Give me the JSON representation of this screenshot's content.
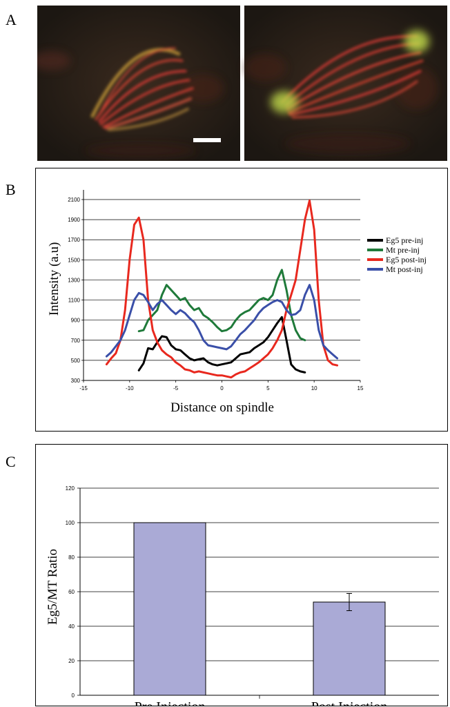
{
  "panels": {
    "a": "A",
    "b": "B",
    "c": "C"
  },
  "colors": {
    "eg5_pre": "#000000",
    "mt_pre": "#1f7a3a",
    "eg5_post": "#e8281e",
    "mt_post": "#3a4fa8",
    "bar_fill": "#aaaad6"
  },
  "chart_data": [
    {
      "type": "line",
      "panel": "B",
      "xlabel": "Distance on spindle",
      "ylabel": "Intensity (a.u)",
      "xlim": [
        -15,
        15
      ],
      "ylim": [
        300,
        2100
      ],
      "xticks": [
        -15,
        -10,
        -5,
        0,
        5,
        10,
        15
      ],
      "yticks": [
        300,
        500,
        700,
        900,
        1100,
        1300,
        1500,
        1700,
        1900,
        2100
      ],
      "grid": "horizontal",
      "legend_position": "right",
      "series": [
        {
          "name": "Eg5 pre-inj",
          "color": "#000000",
          "x": [
            -9,
            -8.5,
            -8,
            -7.5,
            -7,
            -6.5,
            -6,
            -5.5,
            -5,
            -4.5,
            -4,
            -3.5,
            -3,
            -2.5,
            -2,
            -1.5,
            -1,
            -0.5,
            0,
            0.5,
            1,
            1.5,
            2,
            2.5,
            3,
            3.5,
            4,
            4.5,
            5,
            5.5,
            6,
            6.5,
            7,
            7.5,
            8,
            8.5,
            9
          ],
          "y": [
            400,
            470,
            620,
            610,
            680,
            740,
            730,
            650,
            610,
            600,
            560,
            520,
            500,
            510,
            520,
            480,
            460,
            450,
            460,
            470,
            480,
            520,
            560,
            570,
            580,
            620,
            650,
            680,
            730,
            800,
            870,
            930,
            700,
            460,
            410,
            390,
            380
          ]
        },
        {
          "name": "Mt pre-inj",
          "color": "#1f7a3a",
          "x": [
            -9,
            -8.5,
            -8,
            -7.5,
            -7,
            -6.5,
            -6,
            -5.5,
            -5,
            -4.5,
            -4,
            -3.5,
            -3,
            -2.5,
            -2,
            -1.5,
            -1,
            -0.5,
            0,
            0.5,
            1,
            1.5,
            2,
            2.5,
            3,
            3.5,
            4,
            4.5,
            5,
            5.5,
            6,
            6.5,
            7,
            7.5,
            8,
            8.5,
            9
          ],
          "y": [
            790,
            800,
            900,
            950,
            1000,
            1150,
            1250,
            1200,
            1150,
            1100,
            1120,
            1050,
            1000,
            1020,
            950,
            920,
            880,
            830,
            790,
            800,
            830,
            900,
            950,
            980,
            1000,
            1050,
            1100,
            1120,
            1100,
            1150,
            1300,
            1400,
            1200,
            950,
            800,
            720,
            700
          ]
        },
        {
          "name": "Eg5 post-inj",
          "color": "#e8281e",
          "x": [
            -12.5,
            -12,
            -11.5,
            -11,
            -10.5,
            -10,
            -9.5,
            -9,
            -8.5,
            -8,
            -7.5,
            -7,
            -6.5,
            -6,
            -5.5,
            -5,
            -4.5,
            -4,
            -3.5,
            -3,
            -2.5,
            -2,
            -1.5,
            -1,
            -0.5,
            0,
            0.5,
            1,
            1.5,
            2,
            2.5,
            3,
            3.5,
            4,
            4.5,
            5,
            5.5,
            6,
            6.5,
            7,
            7.5,
            8,
            8.5,
            9,
            9.5,
            10,
            10.5,
            11,
            11.5,
            12,
            12.5
          ],
          "y": [
            460,
            520,
            570,
            700,
            1000,
            1500,
            1850,
            1920,
            1700,
            1100,
            800,
            680,
            600,
            560,
            530,
            480,
            450,
            410,
            400,
            380,
            390,
            380,
            370,
            360,
            350,
            350,
            340,
            330,
            360,
            380,
            390,
            420,
            450,
            480,
            520,
            560,
            620,
            700,
            800,
            1000,
            1150,
            1300,
            1600,
            1900,
            2090,
            1800,
            1100,
            650,
            500,
            460,
            450
          ]
        },
        {
          "name": "Mt post-inj",
          "color": "#3a4fa8",
          "x": [
            -12.5,
            -12,
            -11.5,
            -11,
            -10.5,
            -10,
            -9.5,
            -9,
            -8.5,
            -8,
            -7.5,
            -7,
            -6.5,
            -6,
            -5.5,
            -5,
            -4.5,
            -4,
            -3.5,
            -3,
            -2.5,
            -2,
            -1.5,
            -1,
            -0.5,
            0,
            0.5,
            1,
            1.5,
            2,
            2.5,
            3,
            3.5,
            4,
            4.5,
            5,
            5.5,
            6,
            6.5,
            7,
            7.5,
            8,
            8.5,
            9,
            9.5,
            10,
            10.5,
            11,
            11.5,
            12,
            12.5
          ],
          "y": [
            540,
            580,
            640,
            700,
            800,
            950,
            1100,
            1170,
            1150,
            1080,
            1000,
            1060,
            1100,
            1050,
            1000,
            960,
            1000,
            970,
            920,
            880,
            800,
            700,
            650,
            640,
            630,
            620,
            610,
            640,
            700,
            760,
            800,
            850,
            900,
            970,
            1020,
            1050,
            1080,
            1100,
            1080,
            1000,
            950,
            960,
            1000,
            1150,
            1250,
            1100,
            800,
            650,
            600,
            560,
            520
          ]
        }
      ]
    },
    {
      "type": "bar",
      "panel": "C",
      "categories": [
        "Pre Injection",
        "Post Injection"
      ],
      "values": [
        100,
        54
      ],
      "error": [
        0,
        5
      ],
      "ylabel": "Eg5/MT Ratio",
      "xlabel": "",
      "ylim": [
        0,
        120
      ],
      "yticks": [
        0,
        20,
        40,
        60,
        80,
        100,
        120
      ],
      "grid": "horizontal",
      "color": "#aaaad6"
    }
  ]
}
